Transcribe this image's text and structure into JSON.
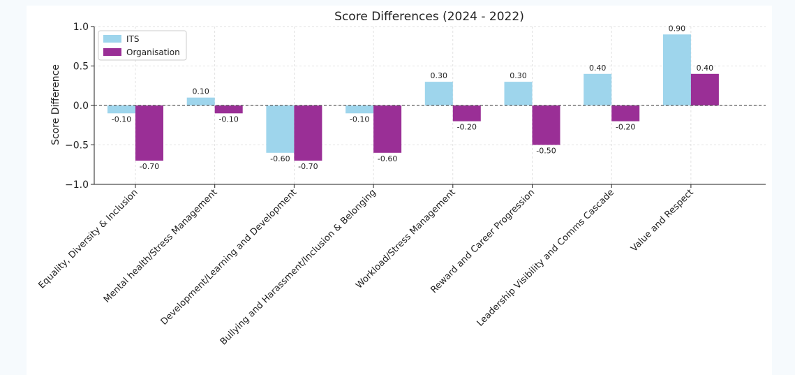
{
  "chart_data": {
    "type": "bar",
    "title": "Score Differences (2024 - 2022)",
    "xlabel": "",
    "ylabel": "Score Difference",
    "ylim": [
      -1.0,
      1.0
    ],
    "yticks": [
      1.0,
      0.5,
      0.0,
      -0.5,
      -1.0
    ],
    "ytick_labels": [
      "1.0",
      "0.5",
      "0.0",
      "−0.5",
      "−1.0"
    ],
    "grid": true,
    "zero_line": "dashed",
    "legend_position": "top-left",
    "categories": [
      "Equality, Diversity & Inclusion",
      "Mental health/Stress Management",
      "Development/Learning and Development",
      "Bullying and Harassment/Inclusion & Belonging",
      "Workload/Stress Management",
      "Reward and Career Progression",
      "Leadership Visibility and Comms Cascade",
      "Value and Respect"
    ],
    "series": [
      {
        "name": "ITS",
        "color": "#9ed5ec",
        "values": [
          -0.1,
          0.1,
          -0.6,
          -0.1,
          0.3,
          0.3,
          0.4,
          0.9
        ],
        "labels": [
          "-0.10",
          "0.10",
          "-0.60",
          "-0.10",
          "0.30",
          "0.30",
          "0.40",
          "0.90"
        ]
      },
      {
        "name": "Organisation",
        "color": "#9a2f96",
        "values": [
          -0.7,
          -0.1,
          -0.7,
          -0.6,
          -0.2,
          -0.5,
          -0.2,
          0.4
        ],
        "labels": [
          "-0.70",
          "-0.10",
          "-0.70",
          "-0.60",
          "-0.20",
          "-0.50",
          "-0.20",
          "0.40"
        ]
      }
    ]
  }
}
